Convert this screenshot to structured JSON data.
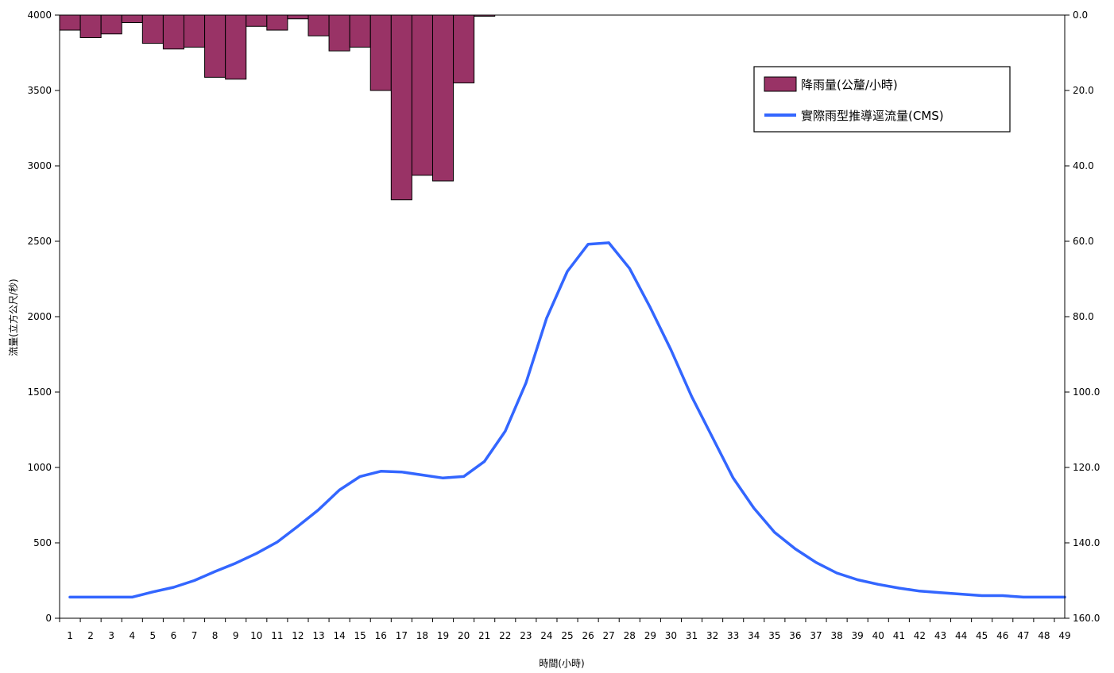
{
  "chart_data": {
    "type": "bar+line",
    "x_categories": [
      1,
      2,
      3,
      4,
      5,
      6,
      7,
      8,
      9,
      10,
      11,
      12,
      13,
      14,
      15,
      16,
      17,
      18,
      19,
      20,
      21,
      22,
      23,
      24,
      25,
      26,
      27,
      28,
      29,
      30,
      31,
      32,
      33,
      34,
      35,
      36,
      37,
      38,
      39,
      40,
      41,
      42,
      43,
      44,
      45,
      46,
      47,
      48,
      49
    ],
    "xlabel": "時間(小時)",
    "ylabel_left": "流量(立方公尺/秒)",
    "ylim_left": [
      0,
      4000
    ],
    "yticks_left": [
      "0",
      "500",
      "1000",
      "1500",
      "2000",
      "2500",
      "3000",
      "3500",
      "4000"
    ],
    "ylim_right": [
      0,
      160
    ],
    "right_axis_inverted": true,
    "yticks_right": [
      "0.0",
      "20.0",
      "40.0",
      "60.0",
      "80.0",
      "100.0",
      "120.0",
      "140.0",
      "160.0"
    ],
    "legend_position": "top-right",
    "series": [
      {
        "name": "降雨量(公釐/小時)",
        "kind": "bar",
        "axis": "right",
        "color": "#993366",
        "values": [
          4.0,
          6.0,
          5.0,
          2.0,
          7.5,
          9.0,
          8.5,
          16.5,
          17.0,
          3.0,
          4.0,
          1.0,
          5.5,
          9.5,
          8.5,
          20.0,
          49.0,
          42.5,
          44.0,
          18.0,
          0.3,
          0,
          0,
          0,
          0,
          0,
          0,
          0,
          0,
          0,
          0,
          0,
          0,
          0,
          0,
          0,
          0,
          0,
          0,
          0,
          0,
          0,
          0,
          0,
          0,
          0,
          0,
          0,
          0
        ]
      },
      {
        "name": "實際雨型推導逕流量(CMS)",
        "kind": "line",
        "axis": "left",
        "color": "#3366ff",
        "values": [
          140,
          140,
          140,
          140,
          175,
          205,
          250,
          310,
          365,
          430,
          505,
          610,
          720,
          850,
          940,
          975,
          970,
          950,
          930,
          940,
          1040,
          1240,
          1560,
          1990,
          2300,
          2480,
          2490,
          2320,
          2060,
          1780,
          1470,
          1200,
          930,
          730,
          570,
          460,
          370,
          300,
          255,
          225,
          200,
          180,
          170,
          160,
          150,
          150,
          140,
          140,
          140
        ]
      }
    ]
  }
}
